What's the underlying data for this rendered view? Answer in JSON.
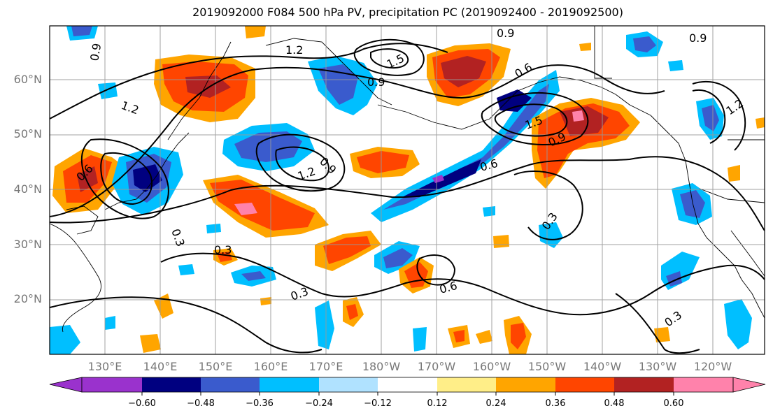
{
  "title": "2019092000 F084 500 hPa PV, precipitation PC (2019092400 - 2019092500)",
  "lon_labels": [
    "130°E",
    "140°E",
    "150°E",
    "160°E",
    "170°E",
    "180°W",
    "170°W",
    "160°W",
    "150°W",
    "140°W",
    "130°W",
    "120°W"
  ],
  "lat_labels": [
    "60°N",
    "50°N",
    "40°N",
    "30°N",
    "20°N"
  ],
  "contour_labels": [
    "0.9",
    "1.2",
    "1.5",
    "0.9",
    "0.6",
    "0.9",
    "1.2",
    "1.5",
    "0.9",
    "0.6",
    "0.3",
    "0.3",
    "0.6",
    "0.3",
    "0.3",
    "0.3",
    "1.2",
    "0.9",
    "1.2",
    "0.9",
    "0.6"
  ],
  "colorbar": {
    "ticks": [
      "−0.60",
      "−0.48",
      "−0.36",
      "−0.24",
      "−0.12",
      "0.12",
      "0.24",
      "0.36",
      "0.48",
      "0.60"
    ],
    "colors": [
      "#9a32cd",
      "#000080",
      "#3a5bcd",
      "#00bfff",
      "#b0e2ff",
      "#ffffff",
      "#ffee88",
      "#ffa500",
      "#ff4500",
      "#b22222",
      "#ff82ab"
    ]
  },
  "colors": {
    "grid": "#999999",
    "tick_label": "#777777"
  }
}
